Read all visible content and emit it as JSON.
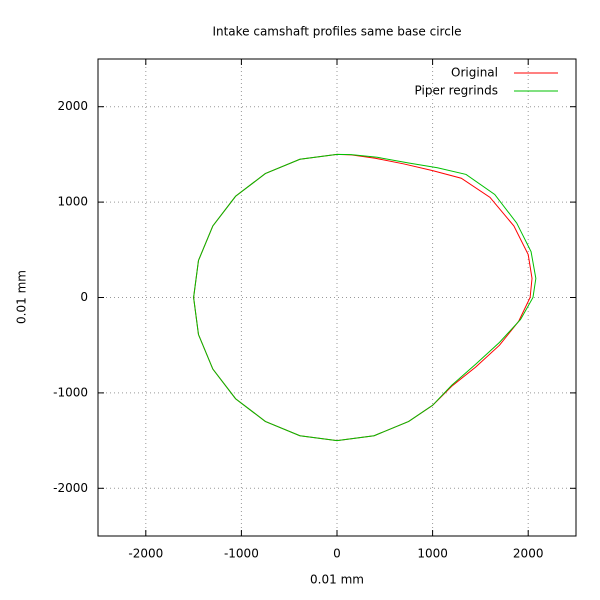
{
  "chart_data": {
    "type": "line",
    "title": "Intake camshaft profiles same base circle",
    "x_label": "0.01 mm",
    "y_label": "0.01 mm",
    "xlim": [
      -2500,
      2500
    ],
    "ylim": [
      -2500,
      2500
    ],
    "xticks": [
      -2000,
      -1000,
      0,
      1000,
      2000
    ],
    "yticks": [
      -2000,
      -1000,
      0,
      1000,
      2000
    ],
    "grid": true,
    "legend": "upper right",
    "series": [
      {
        "name": "Original",
        "color": "#ff0000",
        "x": [
          0,
          -388,
          -750,
          -1061,
          -1299,
          -1449,
          -1500,
          -1449,
          -1299,
          -1061,
          -750,
          -388,
          0,
          388,
          750,
          1000,
          1200,
          1450,
          1700,
          1900,
          2020,
          2040,
          2000,
          1850,
          1600,
          1300,
          1000,
          700,
          400,
          150,
          0
        ],
        "values": [
          1500,
          1449,
          1299,
          1061,
          750,
          388,
          0,
          -388,
          -750,
          -1061,
          -1299,
          -1449,
          -1500,
          -1449,
          -1299,
          -1130,
          -930,
          -730,
          -500,
          -250,
          0,
          200,
          450,
          750,
          1050,
          1250,
          1330,
          1400,
          1460,
          1495,
          1500
        ]
      },
      {
        "name": "Piper regrinds",
        "color": "#00c000",
        "x": [
          0,
          -388,
          -750,
          -1061,
          -1299,
          -1449,
          -1500,
          -1449,
          -1299,
          -1061,
          -750,
          -388,
          0,
          388,
          750,
          1000,
          1200,
          1450,
          1700,
          1920,
          2050,
          2080,
          2030,
          1880,
          1650,
          1350,
          1050,
          750,
          420,
          150,
          0
        ],
        "values": [
          1500,
          1449,
          1299,
          1061,
          750,
          388,
          0,
          -388,
          -750,
          -1061,
          -1299,
          -1449,
          -1500,
          -1449,
          -1299,
          -1130,
          -920,
          -700,
          -470,
          -230,
          0,
          200,
          480,
          780,
          1080,
          1290,
          1360,
          1410,
          1470,
          1497,
          1500
        ]
      }
    ]
  }
}
